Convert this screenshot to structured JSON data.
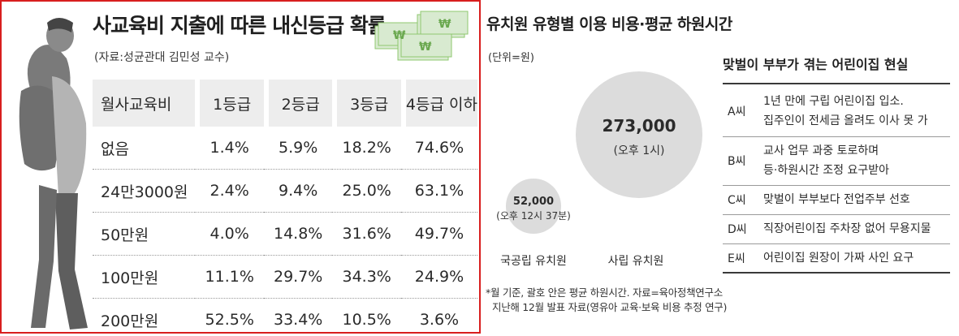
{
  "panel1": {
    "title": "사교육비 지출에 따른 내신등급 확률",
    "source": "(자료:성균관대 김민성 교수)",
    "headers": [
      "월사교육비",
      "1등급",
      "2등급",
      "3등급",
      "4등급 이하"
    ],
    "rows": [
      [
        "없음",
        "1.4%",
        "5.9%",
        "18.2%",
        "74.6%"
      ],
      [
        "24만3000원",
        "2.4%",
        "9.4%",
        "25.0%",
        "63.1%"
      ],
      [
        "50만원",
        "4.0%",
        "14.8%",
        "31.6%",
        "49.7%"
      ],
      [
        "100만원",
        "11.1%",
        "29.7%",
        "34.3%",
        "24.9%"
      ],
      [
        "200만원",
        "52.5%",
        "33.4%",
        "10.5%",
        "3.6%"
      ]
    ]
  },
  "panel2": {
    "title": "유치원 유형별 이용 비용·평균 하원시간",
    "unit": "(단위=원)",
    "bubbles": [
      {
        "cost": 52000,
        "cost_label": "52,000",
        "time": "(오후 12시 37분)",
        "label": "국공립 유치원"
      },
      {
        "cost": 273000,
        "cost_label": "273,000",
        "time": "(오후 1시)",
        "label": "사립 유치원"
      }
    ],
    "note_line1": "*월 기준, 괄호 안은 평균 하원시간. 자료=육아정책연구소",
    "note_line2": "지난해 12월 발표 자료(영유아 교육·보육 비용 추정 연구)"
  },
  "panel3": {
    "title": "맞벌이 부부가 겪는 어린이집 현실",
    "rows": [
      {
        "who": "A씨",
        "lines": [
          "1년 만에 구립 어린이집 입소.",
          "집주인이 전세금 올려도 이사 못 가"
        ]
      },
      {
        "who": "B씨",
        "lines": [
          "교사 업무 과중 토로하며",
          "등·하원시간 조정 요구받아"
        ]
      },
      {
        "who": "C씨",
        "lines": [
          "맞벌이 부부보다 전업주부 선호"
        ]
      },
      {
        "who": "D씨",
        "lines": [
          "직장어린이집 주차장 없어 무용지물"
        ]
      },
      {
        "who": "E씨",
        "lines": [
          "어린이집 원장이 가짜 사인 요구"
        ]
      }
    ]
  },
  "colors": {
    "frame": "#d81e1e",
    "bubble": "#dcdcdc",
    "header_bg": "#ededed",
    "money": "#8fc86f"
  }
}
